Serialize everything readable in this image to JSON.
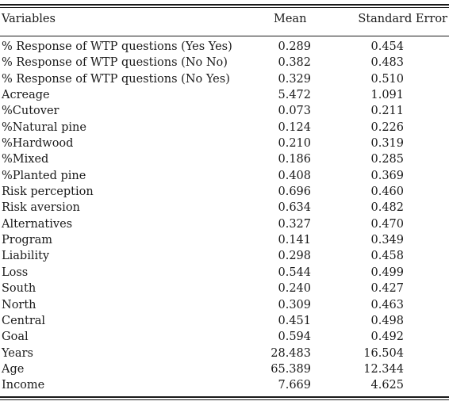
{
  "table": {
    "headers": {
      "variables": "Variables",
      "mean": "Mean",
      "se": "Standard Error"
    },
    "rows": [
      {
        "variable": "% Response of WTP questions (Yes Yes)",
        "mean": "0.289",
        "se": "0.454"
      },
      {
        "variable": "% Response of WTP questions (No No)",
        "mean": "0.382",
        "se": "0.483"
      },
      {
        "variable": "% Response of WTP questions (No Yes)",
        "mean": "0.329",
        "se": "0.510"
      },
      {
        "variable": "Acreage",
        "mean": "5.472",
        "se": "1.091"
      },
      {
        "variable": "%Cutover",
        "mean": "0.073",
        "se": "0.211"
      },
      {
        "variable": "%Natural pine",
        "mean": "0.124",
        "se": "0.226"
      },
      {
        "variable": "%Hardwood",
        "mean": "0.210",
        "se": "0.319"
      },
      {
        "variable": "%Mixed",
        "mean": "0.186",
        "se": "0.285"
      },
      {
        "variable": "%Planted pine",
        "mean": "0.408",
        "se": "0.369"
      },
      {
        "variable": "Risk perception",
        "mean": "0.696",
        "se": "0.460"
      },
      {
        "variable": "Risk aversion",
        "mean": "0.634",
        "se": "0.482"
      },
      {
        "variable": "Alternatives",
        "mean": "0.327",
        "se": "0.470"
      },
      {
        "variable": "Program",
        "mean": "0.141",
        "se": "0.349"
      },
      {
        "variable": "Liability",
        "mean": "0.298",
        "se": "0.458"
      },
      {
        "variable": "Loss",
        "mean": "0.544",
        "se": "0.499"
      },
      {
        "variable": "South",
        "mean": "0.240",
        "se": "0.427"
      },
      {
        "variable": "North",
        "mean": "0.309",
        "se": "0.463"
      },
      {
        "variable": "Central",
        "mean": "0.451",
        "se": "0.498"
      },
      {
        "variable": "Goal",
        "mean": "0.594",
        "se": "0.492"
      },
      {
        "variable": "Years",
        "mean": "28.483",
        "se": "16.504"
      },
      {
        "variable": "Age",
        "mean": "65.389",
        "se": "12.344"
      },
      {
        "variable": "Income",
        "mean": "7.669",
        "se": "4.625"
      }
    ]
  }
}
